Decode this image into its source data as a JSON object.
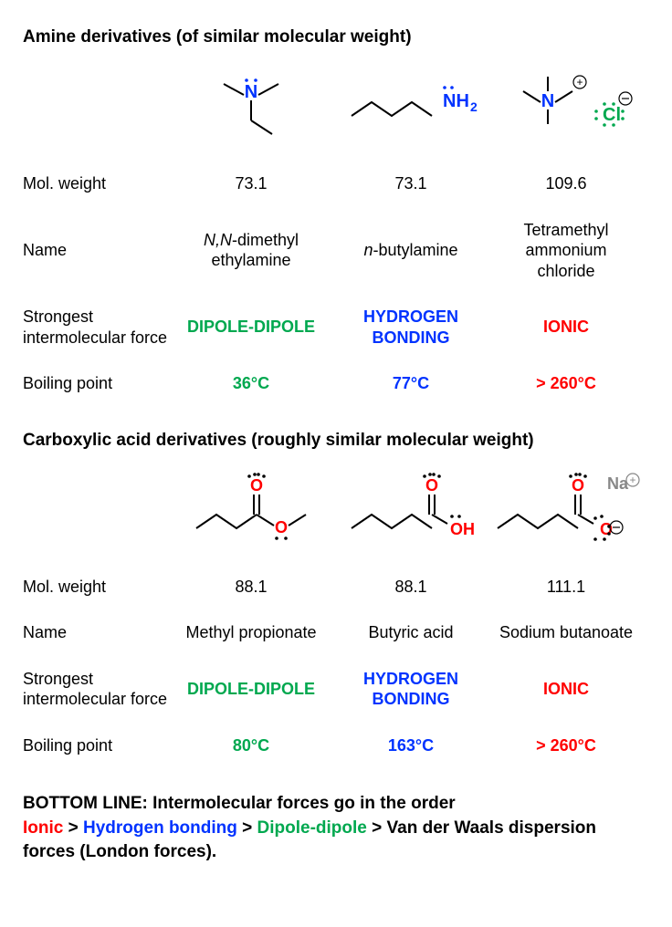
{
  "colors": {
    "black": "#000000",
    "green": "#00a84f",
    "blue": "#0033ff",
    "red": "#ff0000",
    "grey": "#888888"
  },
  "section1": {
    "title": "Amine derivatives (of similar molecular weight)",
    "labels": {
      "molweight": "Mol. weight",
      "name": "Name",
      "force": "Strongest intermolecular force",
      "bp": "Boiling point"
    },
    "compounds": [
      {
        "molweight": "73.1",
        "name_html": "<i>N,N</i>-dimethyl<br>ethylamine",
        "force": "DIPOLE-DIPOLE",
        "force_color": "#00a84f",
        "bp": "36°C",
        "bp_color": "#00a84f"
      },
      {
        "molweight": "73.1",
        "name_html": "<i>n</i>-butylamine",
        "force": "HYDROGEN BONDING",
        "force_color": "#0033ff",
        "bp": "77°C",
        "bp_color": "#0033ff"
      },
      {
        "molweight": "109.6",
        "name_html": "Tetramethyl<br>ammonium<br>chloride",
        "force": "IONIC",
        "force_color": "#ff0000",
        "bp": "> 260°C",
        "bp_color": "#ff0000"
      }
    ]
  },
  "section2": {
    "title": "Carboxylic acid derivatives (roughly similar molecular weight)",
    "labels": {
      "molweight": "Mol. weight",
      "name": "Name",
      "force": "Strongest intermolecular force",
      "bp": "Boiling point"
    },
    "compounds": [
      {
        "molweight": "88.1",
        "name_html": "Methyl propionate",
        "force": "DIPOLE-DIPOLE",
        "force_color": "#00a84f",
        "bp": "80°C",
        "bp_color": "#00a84f"
      },
      {
        "molweight": "88.1",
        "name_html": "Butyric acid",
        "force": "HYDROGEN BONDING",
        "force_color": "#0033ff",
        "bp": "163°C",
        "bp_color": "#0033ff"
      },
      {
        "molweight": "111.1",
        "name_html": "Sodium butanoate",
        "force": "IONIC",
        "force_color": "#ff0000",
        "bp": "> 260°C",
        "bp_color": "#ff0000"
      }
    ]
  },
  "bottom": {
    "line1": "BOTTOM LINE: Intermolecular forces go in the order",
    "ionic": "Ionic",
    "hbond": "Hydrogen bonding",
    "dipole": "Dipole-dipole",
    "vdw": "Van der Waals dispersion forces (London forces).",
    "gt": " > "
  },
  "chem": {
    "N": "N",
    "NH2": "NH",
    "sub2": "2",
    "Cl": "Cl",
    "O": "O",
    "OH": "OH",
    "Na": "Na",
    "plus": "+",
    "minus": "−"
  }
}
